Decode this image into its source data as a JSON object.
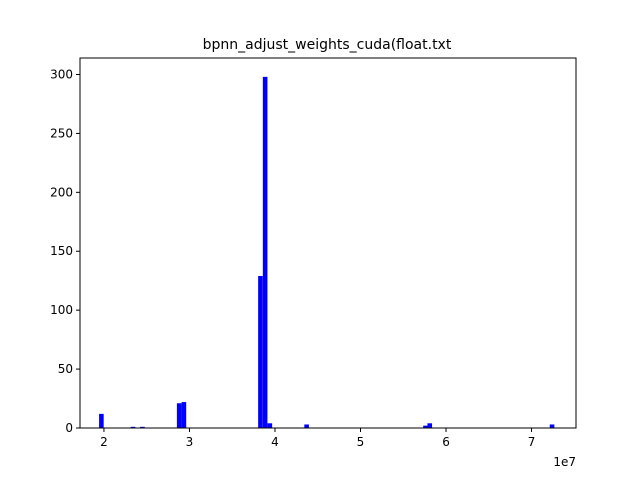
{
  "chart_data": {
    "type": "bar",
    "title": "bpnn_adjust_weights_cuda(float.txt",
    "xlabel": "",
    "ylabel": "",
    "x_offset_label": "1e7",
    "xlim": [
      1.72,
      7.52
    ],
    "ylim": [
      0,
      314
    ],
    "xticks": [
      2,
      3,
      4,
      5,
      6,
      7
    ],
    "yticks": [
      0,
      50,
      100,
      150,
      200,
      250,
      300
    ],
    "bar_color": "#0000ff",
    "bin_width": 0.0538,
    "bins": [
      {
        "x": 1.97,
        "count": 12
      },
      {
        "x": 2.34,
        "count": 1
      },
      {
        "x": 2.45,
        "count": 1
      },
      {
        "x": 2.88,
        "count": 21
      },
      {
        "x": 2.935,
        "count": 22
      },
      {
        "x": 3.83,
        "count": 129
      },
      {
        "x": 3.885,
        "count": 298
      },
      {
        "x": 3.94,
        "count": 4
      },
      {
        "x": 4.37,
        "count": 3
      },
      {
        "x": 5.76,
        "count": 2
      },
      {
        "x": 5.81,
        "count": 4
      },
      {
        "x": 7.24,
        "count": 3
      }
    ]
  }
}
